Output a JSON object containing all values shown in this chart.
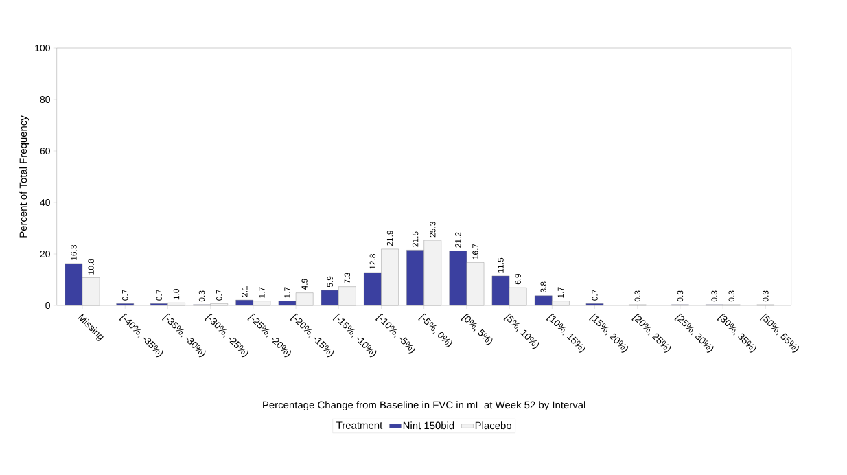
{
  "chart_data": {
    "type": "bar",
    "xlabel": "Percentage Change from Baseline in FVC in mL at Week 52 by Interval",
    "ylabel": "Percent of Total Frequency",
    "categories": [
      "Missing",
      "[-40%, -35%)",
      "[-35%, -30%)",
      "[-30%, -25%)",
      "[-25%, -20%)",
      "[-20%, -15%)",
      "[-15%, -10%)",
      "[-10%, -5%)",
      "[-5%, 0%)",
      "[0%, 5%)",
      "[5%, 10%)",
      "[10%, 15%)",
      "[15%, 20%)",
      "[20%, 25%)",
      "[25%, 30%)",
      "[30%, 35%)",
      "[50%, 55%)"
    ],
    "series": [
      {
        "name": "Nint 150bid",
        "color": "#3b40a0",
        "values": [
          16.3,
          0.7,
          0.7,
          0.3,
          2.1,
          1.7,
          5.9,
          12.8,
          21.5,
          21.2,
          11.5,
          3.8,
          0.7,
          null,
          0.3,
          0.3,
          null
        ],
        "value_labels": [
          "16.3",
          "0.7",
          "0.7",
          "0.3",
          "2.1",
          "1.7",
          "5.9",
          "12.8",
          "21.5",
          "21.2",
          "11.5",
          "3.8",
          "0.7",
          null,
          "0.3",
          "0.3",
          null
        ]
      },
      {
        "name": "Placebo",
        "color": "#f2f2f2",
        "values": [
          10.8,
          null,
          1.0,
          0.7,
          1.7,
          4.9,
          7.3,
          21.9,
          25.3,
          16.7,
          6.9,
          1.7,
          null,
          0.3,
          null,
          0.3,
          0.3
        ],
        "value_labels": [
          "10.8",
          null,
          "1.0",
          "0.7",
          "1.7",
          "4.9",
          "7.3",
          "21.9",
          "25.3",
          "16.7",
          "6.9",
          "1.7",
          null,
          "0.3",
          null,
          "0.3",
          "0.3"
        ]
      }
    ],
    "ylim": [
      0,
      100
    ],
    "yticks": [
      0,
      20,
      40,
      60,
      80,
      100
    ],
    "legend": "bottom",
    "legend_title": "Treatment"
  }
}
